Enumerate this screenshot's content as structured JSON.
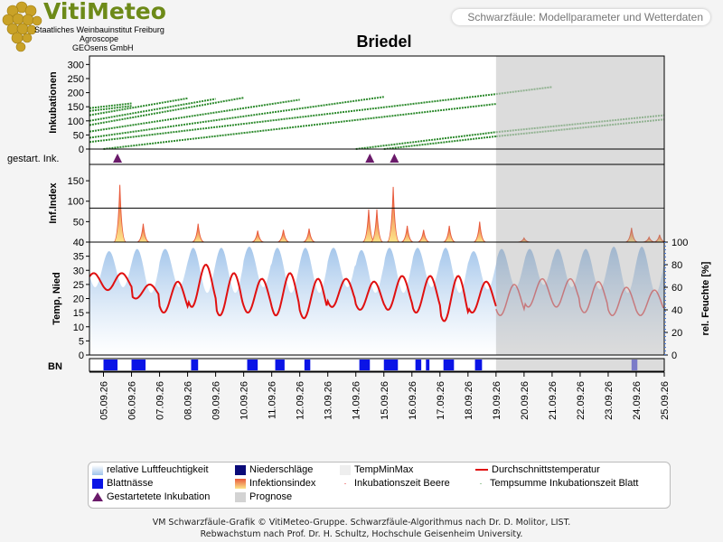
{
  "header": {
    "logo_text": "VitiMeteo",
    "logo_lines": [
      "Staatliches Weinbauinstitut Freiburg",
      "Agroscope",
      "GEOsens GmbH"
    ],
    "title": "Schwarzfäule: Modellparameter und Wetterdaten"
  },
  "colors": {
    "background": "#f4f4f4",
    "humidity": "#9fc3ea",
    "leaf_wetness": "#0a14e6",
    "precipitation": "#0a0a78",
    "infection": "#e85a3c",
    "infection_fill": "#fde58a",
    "temperature": "#e01010",
    "incubation": "#2d8a2d",
    "started_marker": "#6a1a6a",
    "forecast": "#d3d3d3"
  },
  "chart_data": {
    "type": "line",
    "title": "Briedel",
    "dates": [
      "05.09.26",
      "06.09.26",
      "07.09.26",
      "08.09.26",
      "09.09.26",
      "10.09.26",
      "11.09.26",
      "12.09.26",
      "13.09.26",
      "14.09.26",
      "15.09.26",
      "16.09.26",
      "17.09.26",
      "18.09.26",
      "19.09.26",
      "20.09.26",
      "21.09.26",
      "22.09.26",
      "23.09.26",
      "24.09.26",
      "25.09.26"
    ],
    "x_range": [
      "04.09.26 12:00",
      "25.09.26"
    ],
    "forecast_start": "19.09.26",
    "panels": {
      "incubations": {
        "ylabel": "Inkubationen",
        "ylim": [
          0,
          330
        ],
        "yticks": [
          "0",
          "50",
          "100",
          "150",
          "200",
          "250",
          "300"
        ],
        "lines_observed": [
          {
            "start": "04.09.26 12:00",
            "end": "06.09.26",
            "y0": 145,
            "y1": 162
          },
          {
            "start": "04.09.26 12:00",
            "end": "06.09.26",
            "y0": 135,
            "y1": 153
          },
          {
            "start": "04.09.26 12:00",
            "end": "08.09.26",
            "y0": 120,
            "y1": 180
          },
          {
            "start": "04.09.26 12:00",
            "end": "09.09.26",
            "y0": 100,
            "y1": 178
          },
          {
            "start": "04.09.26 12:00",
            "end": "10.09.26",
            "y0": 85,
            "y1": 182
          },
          {
            "start": "04.09.26 12:00",
            "end": "12.09.26",
            "y0": 62,
            "y1": 175
          },
          {
            "start": "04.09.26 12:00",
            "end": "15.09.26",
            "y0": 40,
            "y1": 185
          },
          {
            "start": "04.09.26 12:00",
            "end": "19.09.26",
            "y0": 25,
            "y1": 195
          },
          {
            "start": "05.09.26",
            "end": "19.09.26",
            "y0": 0,
            "y1": 160
          },
          {
            "start": "14.09.26",
            "end": "19.09.26",
            "y0": 0,
            "y1": 60
          },
          {
            "start": "15.09.26",
            "end": "19.09.26",
            "y0": 0,
            "y1": 45
          }
        ],
        "lines_forecast": [
          {
            "start": "19.09.26",
            "end": "21.09.26",
            "y0": 195,
            "y1": 220
          },
          {
            "start": "19.09.26",
            "end": "25.09.26",
            "y0": 60,
            "y1": 120
          },
          {
            "start": "19.09.26",
            "end": "25.09.26",
            "y0": 45,
            "y1": 105
          }
        ]
      },
      "started_incubations": {
        "label": "gestart. Ink.",
        "dates": [
          "05.09.26 12:00",
          "14.09.26 12:00",
          "15.09.26 09:00"
        ]
      },
      "infection_index": {
        "ylabel": "Inf.Index",
        "ylim": [
          0,
          190
        ],
        "threshold": 83,
        "yticks": [
          "0",
          "50",
          "100",
          "150"
        ],
        "peaks": [
          {
            "date": "05.09.26 14:00",
            "value": 140
          },
          {
            "date": "06.09.26 10:00",
            "value": 45
          },
          {
            "date": "08.09.26 09:00",
            "value": 45
          },
          {
            "date": "10.09.26 12:00",
            "value": 28
          },
          {
            "date": "11.09.26 10:00",
            "value": 30
          },
          {
            "date": "12.09.26 08:00",
            "value": 33
          },
          {
            "date": "14.09.26 11:00",
            "value": 80
          },
          {
            "date": "14.09.26 18:00",
            "value": 80
          },
          {
            "date": "15.09.26 08:00",
            "value": 135
          },
          {
            "date": "15.09.26 20:00",
            "value": 40
          },
          {
            "date": "16.09.26 10:00",
            "value": 30
          },
          {
            "date": "17.09.26 08:00",
            "value": 40
          },
          {
            "date": "18.09.26 10:00",
            "value": 50
          },
          {
            "date": "20.09.26 00:00",
            "value": 10
          },
          {
            "date": "23.09.26 20:00",
            "value": 35
          },
          {
            "date": "24.09.26 11:00",
            "value": 12
          },
          {
            "date": "24.09.26 20:00",
            "value": 18
          }
        ]
      },
      "weather": {
        "ylabel_left": "Temp, Nied",
        "ylim_left": [
          0,
          40
        ],
        "yticks_left": [
          "0",
          "5",
          "10",
          "15",
          "20",
          "25",
          "30",
          "35",
          "40"
        ],
        "ylabel_right": "rel. Feuchte [%]",
        "ylim_right": [
          0,
          100
        ],
        "yticks_right": [
          "0",
          "20",
          "40",
          "60",
          "80",
          "100"
        ],
        "temp_daily_min": [
          23,
          20,
          15,
          17,
          14,
          15,
          14,
          13,
          17,
          16,
          16,
          15,
          12,
          15,
          14,
          17,
          17,
          15,
          14,
          14,
          15
        ],
        "temp_daily_max": [
          29,
          25,
          26,
          32,
          29,
          27,
          29,
          27,
          27,
          26,
          28,
          28,
          28,
          26,
          25,
          27,
          27,
          26,
          24,
          23,
          24
        ],
        "humidity_daily_min": [
          60,
          55,
          60,
          55,
          55,
          60,
          55,
          55,
          60,
          55,
          55,
          60,
          55,
          58,
          60,
          62,
          60,
          58,
          55,
          55,
          60
        ],
        "humidity_daily_max": [
          92,
          94,
          94,
          95,
          95,
          96,
          95,
          95,
          95,
          93,
          95,
          95,
          95,
          92,
          94,
          94,
          94,
          94,
          96,
          96,
          96
        ]
      },
      "leaf_wetness": {
        "label": "BN",
        "periods": [
          [
            "05.09.26 00:00",
            "05.09.26 12:00"
          ],
          [
            "06.09.26 00:00",
            "06.09.26 12:00"
          ],
          [
            "08.09.26 03:00",
            "08.09.26 09:00"
          ],
          [
            "10.09.26 03:00",
            "10.09.26 12:00"
          ],
          [
            "11.09.26 03:00",
            "11.09.26 11:00"
          ],
          [
            "12.09.26 04:00",
            "12.09.26 09:00"
          ],
          [
            "14.09.26 03:00",
            "14.09.26 12:00"
          ],
          [
            "15.09.26 00:00",
            "15.09.26 12:00"
          ],
          [
            "16.09.26 03:00",
            "16.09.26 08:00"
          ],
          [
            "16.09.26 12:00",
            "16.09.26 15:00"
          ],
          [
            "17.09.26 03:00",
            "17.09.26 12:00"
          ],
          [
            "18.09.26 06:00",
            "18.09.26 12:00"
          ],
          [
            "23.09.26 20:00",
            "24.09.26 01:00"
          ]
        ]
      }
    },
    "legend": [
      {
        "label": "relative Luftfeuchtigkeit",
        "key": "humidity"
      },
      {
        "label": "Niederschläge",
        "key": "precipitation"
      },
      {
        "label": "TempMinMax",
        "key": "tempminmax"
      },
      {
        "label": "Durchschnittstemperatur",
        "key": "temperature"
      },
      {
        "label": "Blattnässe",
        "key": "leaf_wetness"
      },
      {
        "label": "Infektionsindex",
        "key": "infection"
      },
      {
        "label": "Inkubationszeit Beere",
        "key": "inc_beere"
      },
      {
        "label": "Tempsumme Inkubationszeit Blatt",
        "key": "inc_blatt"
      },
      {
        "label": "Gestartetete Inkubation",
        "key": "started"
      },
      {
        "label": "Prognose",
        "key": "forecast"
      }
    ]
  },
  "footer": {
    "line1": "VM Schwarzfäule-Grafik © VitiMeteo-Gruppe. Schwarzfäule-Algorithmus nach Dr. D. Molitor, LIST.",
    "line2": "Rebwachstum nach Prof. Dr. H. Schultz, Hochschule Geisenheim University."
  }
}
